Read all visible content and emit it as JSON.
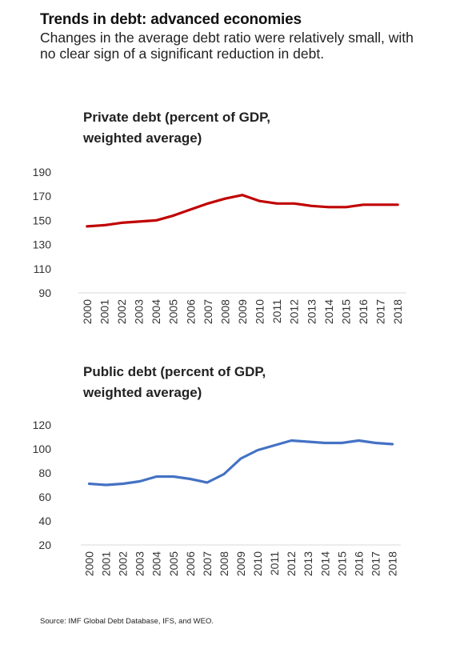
{
  "header": {
    "title": "Trends in debt: advanced economies",
    "subtitle": "Changes in the average debt ratio were relatively small, with no clear sign of a significant reduction in debt."
  },
  "source": "Source: IMF Global Debt Database, IFS, and WEO.",
  "chart_data": [
    {
      "type": "line",
      "title": "Private debt (percent of GDP,\nweighted average)",
      "categories": [
        "2000",
        "2001",
        "2002",
        "2003",
        "2004",
        "2005",
        "2006",
        "2007",
        "2008",
        "2009",
        "2010",
        "2011",
        "2012",
        "2013",
        "2014",
        "2015",
        "2016",
        "2017",
        "2018"
      ],
      "series": [
        {
          "values": [
            145,
            146,
            148,
            149,
            150,
            154,
            159,
            164,
            168,
            171,
            166,
            164,
            164,
            162,
            161,
            161,
            163,
            163,
            163
          ],
          "color": "#c00000"
        }
      ],
      "yticks": [
        90,
        110,
        130,
        150,
        170,
        190
      ],
      "ylim": [
        90,
        190
      ],
      "grid": false,
      "legend": "none"
    },
    {
      "type": "line",
      "title": "Public debt (percent of GDP,\nweighted average)",
      "categories": [
        "2000",
        "2001",
        "2002",
        "2003",
        "2004",
        "2005",
        "2006",
        "2007",
        "2008",
        "2009",
        "2010",
        "2011",
        "2012",
        "2013",
        "2014",
        "2015",
        "2016",
        "2017",
        "2018"
      ],
      "series": [
        {
          "values": [
            71,
            70,
            71,
            73,
            77,
            77,
            75,
            72,
            79,
            92,
            99,
            103,
            107,
            106,
            105,
            105,
            107,
            105,
            104
          ],
          "color": "#4472c4"
        }
      ],
      "yticks": [
        20,
        40,
        60,
        80,
        100,
        120
      ],
      "ylim": [
        20,
        120
      ],
      "grid": false,
      "legend": "none"
    }
  ]
}
